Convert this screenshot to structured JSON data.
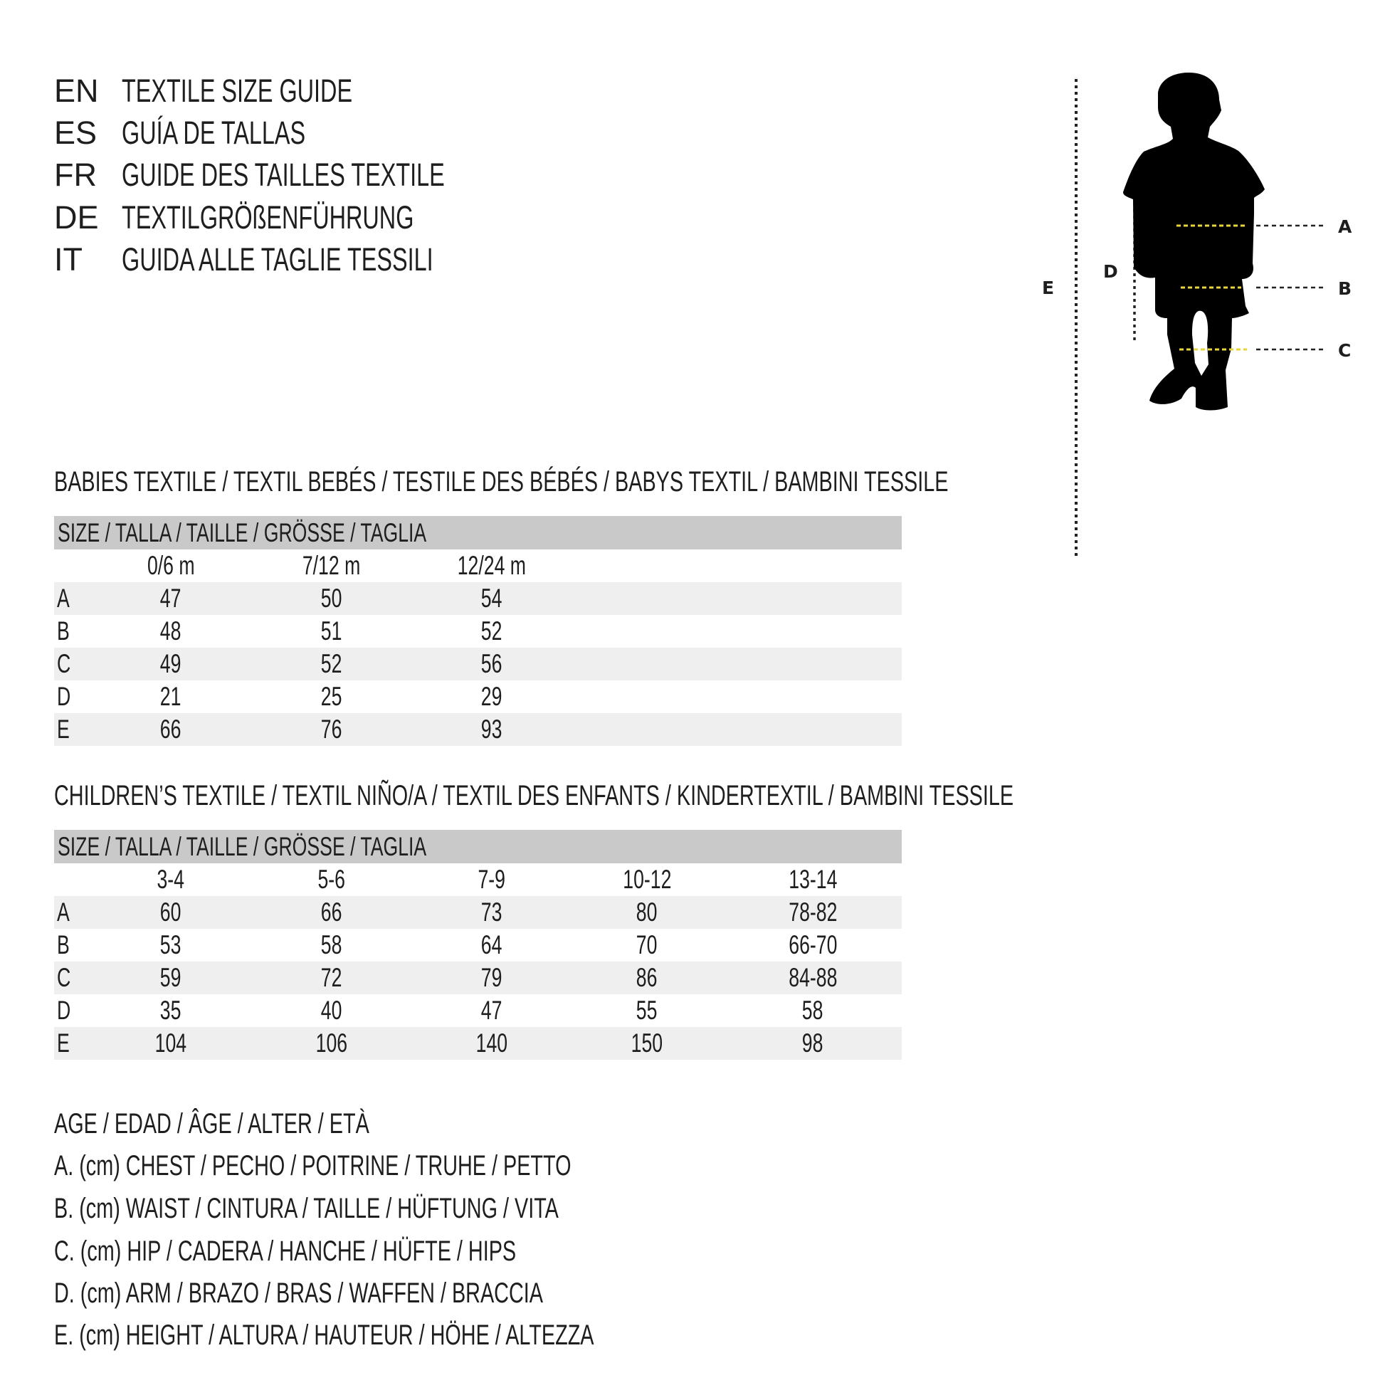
{
  "titles": [
    {
      "code": "EN",
      "text": "TEXTILE SIZE GUIDE"
    },
    {
      "code": "ES",
      "text": "GUÍA DE TALLAS"
    },
    {
      "code": "FR",
      "text": "GUIDE DES TAILLES TEXTILE"
    },
    {
      "code": "DE",
      "text": "TEXTILGRÖßENFÜHRUNG"
    },
    {
      "code": "IT",
      "text": "GUIDA ALLE TAGLIE TESSILI"
    }
  ],
  "babies": {
    "heading": "BABIES TEXTILE / TEXTIL BEBÉS / TESTILE DES BÉBÉS / BABYS TEXTIL / BAMBINI TESSILE",
    "size_label": "SIZE / TALLA / TAILLE / GRÖSSE / TAGLIA",
    "columns": [
      "0/6 m",
      "7/12 m",
      "12/24 m"
    ],
    "rows": [
      {
        "label": "A",
        "values": [
          "47",
          "50",
          "54"
        ]
      },
      {
        "label": "B",
        "values": [
          "48",
          "51",
          "52"
        ]
      },
      {
        "label": "C",
        "values": [
          "49",
          "52",
          "56"
        ]
      },
      {
        "label": "D",
        "values": [
          "21",
          "25",
          "29"
        ]
      },
      {
        "label": "E",
        "values": [
          "66",
          "76",
          "93"
        ]
      }
    ]
  },
  "children": {
    "heading": "CHILDREN’S TEXTILE / TEXTIL NIÑO/A / TEXTIL DES ENFANTS / KINDERTEXTIL / BAMBINI TESSILE",
    "size_label": "SIZE / TALLA / TAILLE / GRÖSSE / TAGLIA",
    "columns": [
      "3-4",
      "5-6",
      "7-9",
      "10-12",
      "13-14"
    ],
    "rows": [
      {
        "label": "A",
        "values": [
          "60",
          "66",
          "73",
          "80",
          "78-82"
        ]
      },
      {
        "label": "B",
        "values": [
          "53",
          "58",
          "64",
          "70",
          "66-70"
        ]
      },
      {
        "label": "C",
        "values": [
          "59",
          "72",
          "79",
          "86",
          "84-88"
        ]
      },
      {
        "label": "D",
        "values": [
          "35",
          "40",
          "47",
          "55",
          "58"
        ]
      },
      {
        "label": "E",
        "values": [
          "104",
          "106",
          "140",
          "150",
          "98"
        ]
      }
    ]
  },
  "legend": [
    "AGE / EDAD / ÂGE / ALTER / ETÀ",
    "A. (cm) CHEST / PECHO / POITRINE / TRUHE / PETTO",
    "B. (cm) WAIST / CINTURA / TAILLE / HÜFTUNG / VITA",
    "C. (cm) HIP / CADERA / HANCHE / HÜFTE / HIPS",
    "D. (cm) ARM / BRAZO / BRAS / WAFFEN / BRACCIA",
    "E. (cm) HEIGHT / ALTURA / HAUTEUR / HÖHE / ALTEZZA"
  ],
  "figure": {
    "labels": {
      "A": "A",
      "B": "B",
      "C": "C",
      "D": "D",
      "E": "E"
    },
    "colors": {
      "silhouette": "#000000",
      "measure_line": "#e8d634",
      "guide_line": "#222222",
      "header_band": "#c9c9c9",
      "row_shade": "#efefef"
    }
  }
}
